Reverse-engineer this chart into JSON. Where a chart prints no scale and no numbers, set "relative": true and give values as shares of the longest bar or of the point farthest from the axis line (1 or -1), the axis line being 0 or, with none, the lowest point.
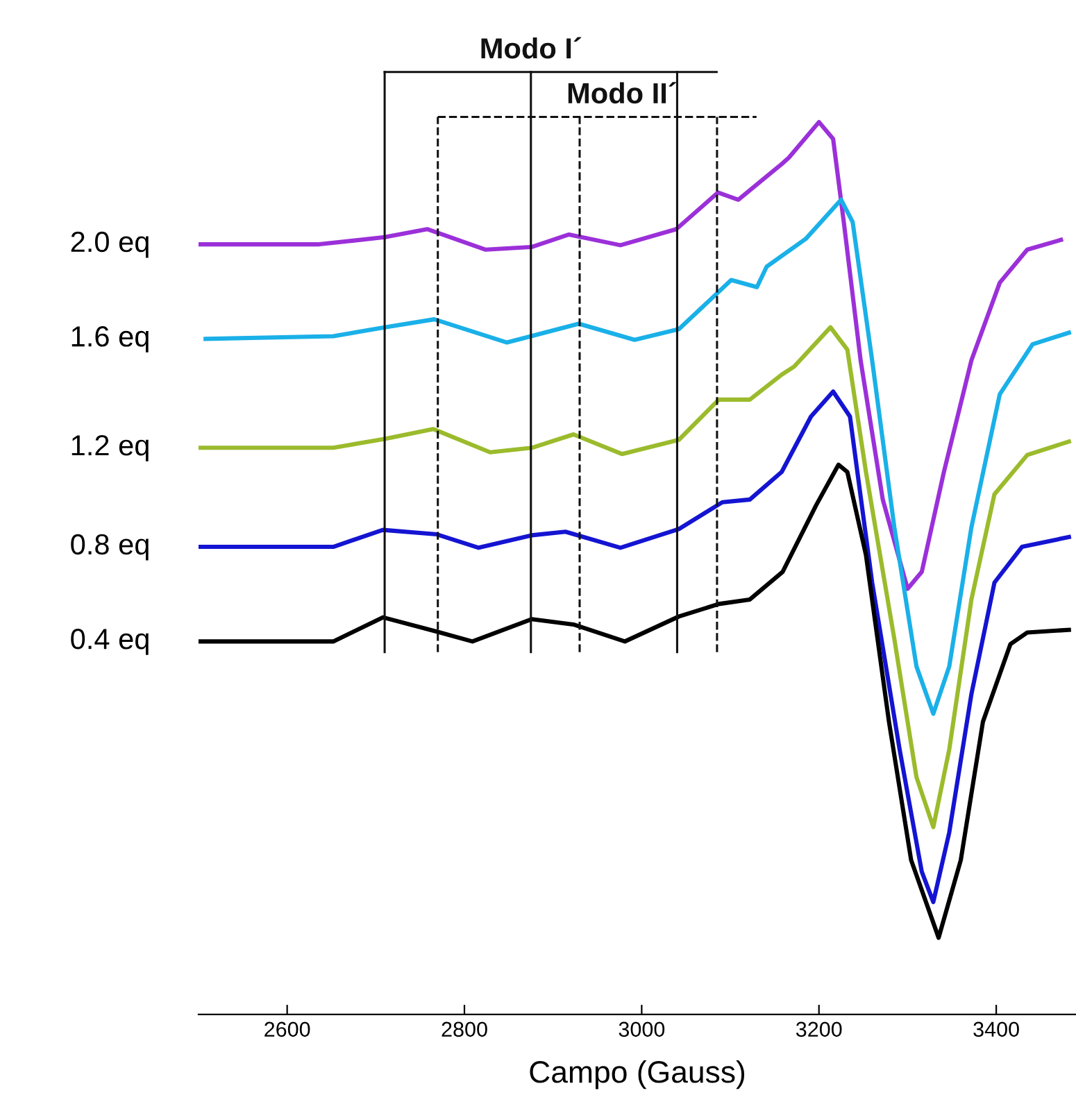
{
  "chart_data": {
    "type": "line",
    "xlabel": "Campo (Gauss)",
    "relative": true,
    "xlim": [
      2500,
      3490
    ],
    "xticks": [
      2600,
      2800,
      3000,
      3200,
      3400
    ],
    "grid": false,
    "legend": false,
    "line_style": "solid",
    "marker": "none",
    "series": [
      {
        "name": "2.0 eq",
        "color": "#9b30d9",
        "x": [
          2500,
          2636,
          2710,
          2758,
          2824,
          2876,
          2918,
          2976,
          3039,
          3086,
          3109,
          3158,
          3166,
          3200,
          3216,
          3228,
          3247,
          3272,
          3300,
          3316,
          3341,
          3372,
          3404,
          3435,
          3473
        ],
        "values": [
          0.863,
          0.863,
          0.871,
          0.88,
          0.857,
          0.86,
          0.874,
          0.862,
          0.88,
          0.921,
          0.913,
          0.953,
          0.96,
          1.0,
          0.981,
          0.888,
          0.733,
          0.577,
          0.477,
          0.496,
          0.608,
          0.733,
          0.82,
          0.857,
          0.868
        ]
      },
      {
        "name": "1.6 eq",
        "color": "#1ab0e8",
        "x": [
          2508,
          2652,
          2710,
          2766,
          2848,
          2929,
          2992,
          3042,
          3101,
          3130,
          3141,
          3185,
          3225,
          3238,
          3260,
          3285,
          3310,
          3329,
          3347,
          3372,
          3404,
          3441,
          3482
        ],
        "values": [
          0.757,
          0.76,
          0.77,
          0.779,
          0.753,
          0.774,
          0.756,
          0.768,
          0.823,
          0.815,
          0.838,
          0.869,
          0.913,
          0.888,
          0.733,
          0.546,
          0.39,
          0.337,
          0.39,
          0.546,
          0.695,
          0.751,
          0.764
        ]
      },
      {
        "name": "1.2 eq",
        "color": "#9bbb2c",
        "x": [
          2500,
          2652,
          2710,
          2765,
          2829,
          2876,
          2923,
          2978,
          3042,
          3087,
          3122,
          3158,
          3172,
          3213,
          3232,
          3253,
          3285,
          3310,
          3329,
          3347,
          3372,
          3398,
          3435,
          3482
        ],
        "values": [
          0.635,
          0.635,
          0.645,
          0.656,
          0.63,
          0.635,
          0.65,
          0.628,
          0.644,
          0.689,
          0.689,
          0.717,
          0.726,
          0.77,
          0.745,
          0.608,
          0.421,
          0.266,
          0.21,
          0.297,
          0.465,
          0.583,
          0.627,
          0.642
        ]
      },
      {
        "name": "0.8 eq",
        "color": "#1414d2",
        "x": [
          2500,
          2652,
          2708,
          2769,
          2816,
          2876,
          2914,
          2976,
          3042,
          3091,
          3122,
          3158,
          3191,
          3216,
          3235,
          3260,
          3291,
          3316,
          3329,
          3347,
          3372,
          3398,
          3429,
          3482
        ],
        "values": [
          0.524,
          0.524,
          0.543,
          0.538,
          0.523,
          0.537,
          0.541,
          0.523,
          0.544,
          0.574,
          0.577,
          0.608,
          0.67,
          0.698,
          0.67,
          0.484,
          0.297,
          0.16,
          0.126,
          0.204,
          0.359,
          0.484,
          0.524,
          0.535
        ]
      },
      {
        "name": "0.4 eq",
        "color": "#000000",
        "x": [
          2500,
          2652,
          2708,
          2769,
          2809,
          2876,
          2923,
          2981,
          3042,
          3087,
          3122,
          3159,
          3197,
          3222,
          3232,
          3253,
          3279,
          3304,
          3335,
          3360,
          3385,
          3416,
          3435,
          3482
        ],
        "values": [
          0.418,
          0.418,
          0.445,
          0.429,
          0.418,
          0.443,
          0.437,
          0.418,
          0.446,
          0.46,
          0.465,
          0.496,
          0.571,
          0.616,
          0.608,
          0.515,
          0.328,
          0.173,
          0.086,
          0.173,
          0.328,
          0.415,
          0.428,
          0.431
        ]
      }
    ],
    "ref_lines": [
      {
        "axis": "x",
        "value": 2710,
        "color": "#111111",
        "line_style": "solid"
      },
      {
        "axis": "x",
        "value": 2875,
        "label": "Modo I´",
        "color": "#111111",
        "line_style": "solid"
      },
      {
        "axis": "x",
        "value": 3040,
        "color": "#111111",
        "line_style": "solid"
      },
      {
        "axis": "x",
        "value": 2770,
        "color": "#111111",
        "line_style": "dashed"
      },
      {
        "axis": "x",
        "value": 2930,
        "label": "Modo II´",
        "color": "#111111",
        "line_style": "dashed"
      },
      {
        "axis": "x",
        "value": 3085,
        "color": "#111111",
        "line_style": "dashed"
      }
    ]
  }
}
